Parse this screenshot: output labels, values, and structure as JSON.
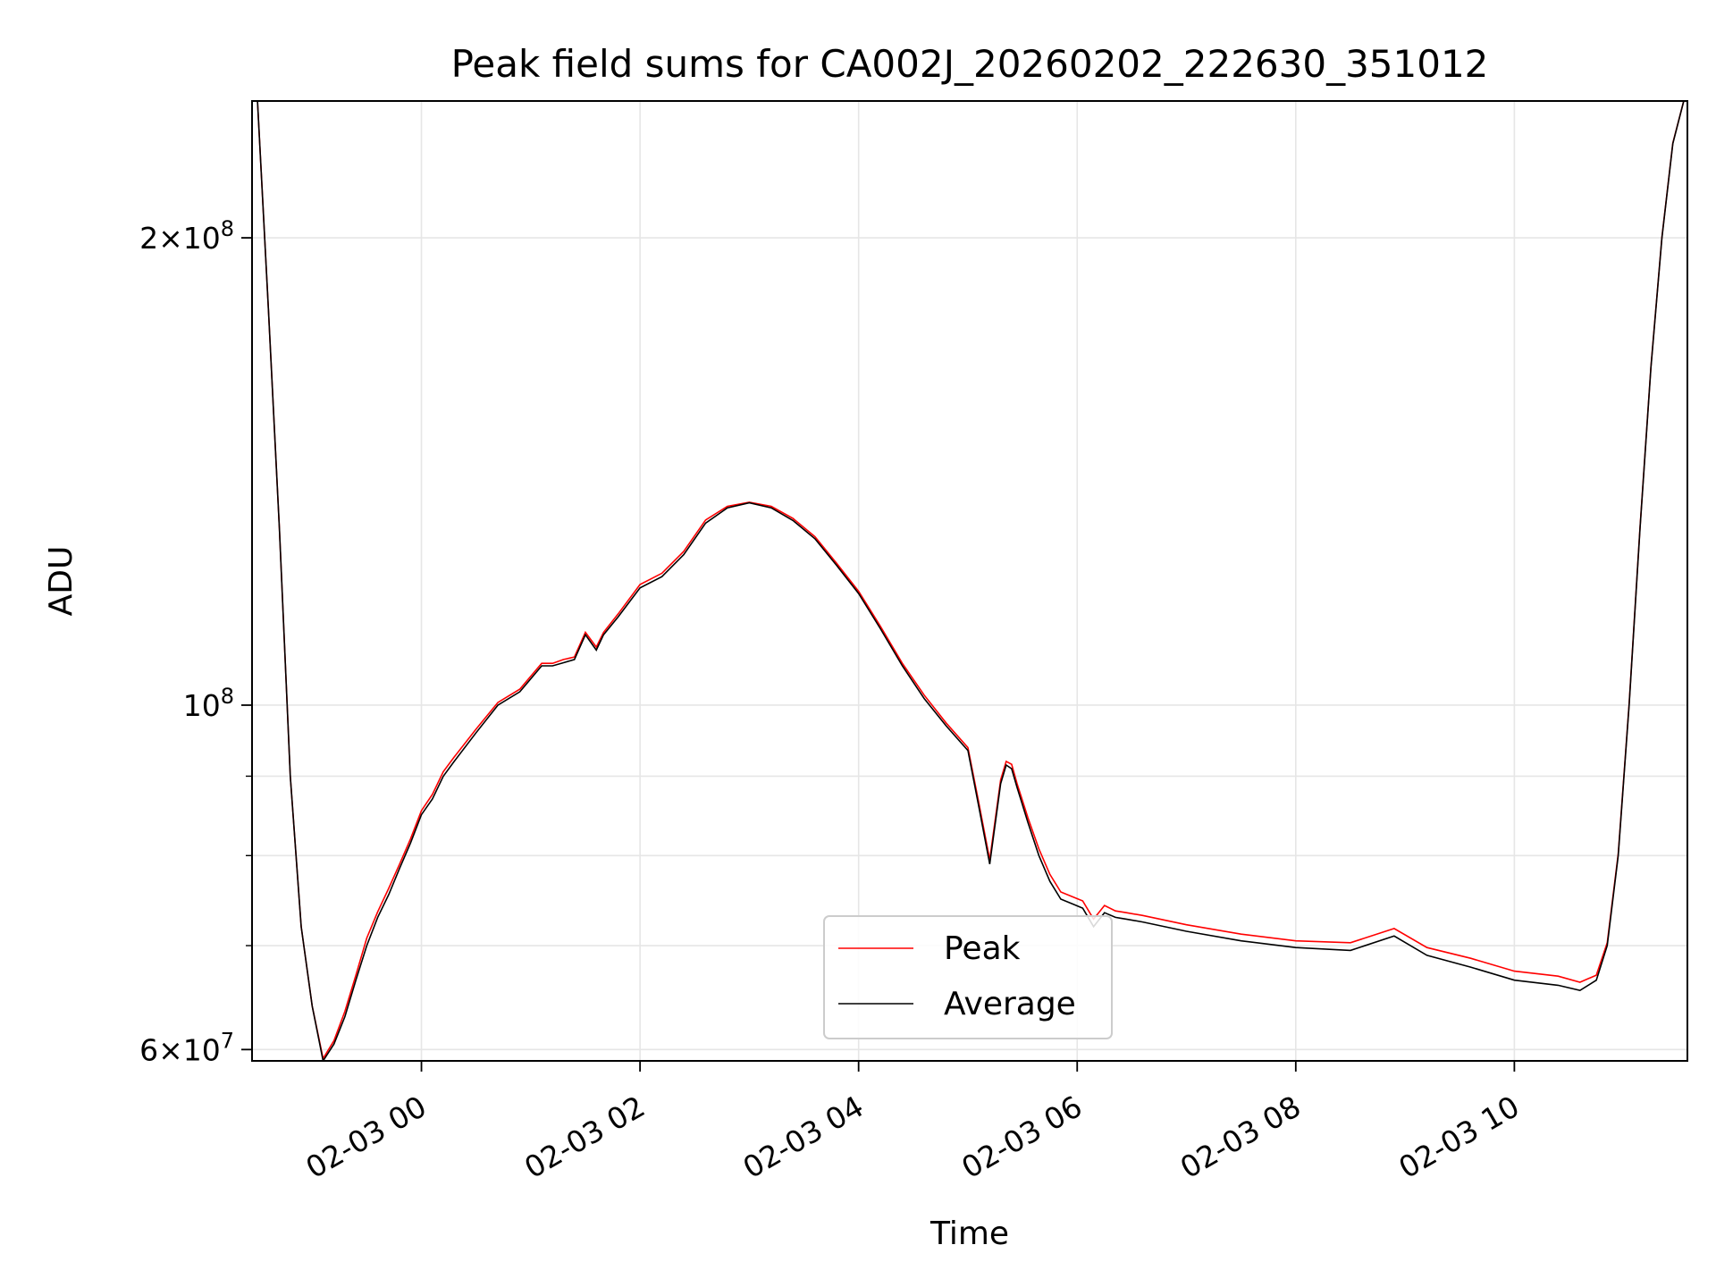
{
  "chart_data": {
    "type": "line",
    "title": "Peak field sums for CA002J_20260202_222630_351012",
    "xlabel": "Time",
    "ylabel": "ADU",
    "xlim": [
      "2026-02-02 22:27",
      "2026-02-03 11:35"
    ],
    "ylim": [
      59000000,
      245000000
    ],
    "yscale": "log",
    "grid": true,
    "legend": "lower center",
    "x_ticks": [
      "02-03 00",
      "02-03 02",
      "02-03 04",
      "02-03 06",
      "02-03 08",
      "02-03 10"
    ],
    "y_ticks": [
      {
        "value": 60000000,
        "mantissa": "6",
        "exponent": "7"
      },
      {
        "value": 100000000,
        "mantissa": "",
        "exponent": "8"
      },
      {
        "value": 200000000,
        "mantissa": "2",
        "exponent": "8"
      }
    ],
    "series": [
      {
        "name": "Peak",
        "color": "#ff0000"
      },
      {
        "name": "Average",
        "color": "#000000"
      }
    ],
    "x": [
      "2026-02-02 22:30",
      "2026-02-02 22:36",
      "2026-02-02 22:42",
      "2026-02-02 22:48",
      "2026-02-02 22:54",
      "2026-02-02 23:00",
      "2026-02-02 23:06",
      "2026-02-02 23:12",
      "2026-02-02 23:18",
      "2026-02-02 23:24",
      "2026-02-02 23:30",
      "2026-02-02 23:36",
      "2026-02-02 23:42",
      "2026-02-02 23:48",
      "2026-02-02 23:54",
      "2026-02-03 00:00",
      "2026-02-03 00:06",
      "2026-02-03 00:12",
      "2026-02-03 00:18",
      "2026-02-03 00:30",
      "2026-02-03 00:42",
      "2026-02-03 00:54",
      "2026-02-03 01:06",
      "2026-02-03 01:12",
      "2026-02-03 01:18",
      "2026-02-03 01:24",
      "2026-02-03 01:30",
      "2026-02-03 01:36",
      "2026-02-03 01:40",
      "2026-02-03 01:48",
      "2026-02-03 02:00",
      "2026-02-03 02:12",
      "2026-02-03 02:24",
      "2026-02-03 02:36",
      "2026-02-03 02:48",
      "2026-02-03 03:00",
      "2026-02-03 03:12",
      "2026-02-03 03:24",
      "2026-02-03 03:36",
      "2026-02-03 03:48",
      "2026-02-03 04:00",
      "2026-02-03 04:12",
      "2026-02-03 04:24",
      "2026-02-03 04:36",
      "2026-02-03 04:48",
      "2026-02-03 05:00",
      "2026-02-03 05:06",
      "2026-02-03 05:12",
      "2026-02-03 05:18",
      "2026-02-03 05:21",
      "2026-02-03 05:24",
      "2026-02-03 05:27",
      "2026-02-03 05:33",
      "2026-02-03 05:39",
      "2026-02-03 05:45",
      "2026-02-03 05:51",
      "2026-02-03 05:57",
      "2026-02-03 06:03",
      "2026-02-03 06:09",
      "2026-02-03 06:15",
      "2026-02-03 06:21",
      "2026-02-03 06:24",
      "2026-02-03 06:27",
      "2026-02-03 06:36",
      "2026-02-03 07:00",
      "2026-02-03 07:30",
      "2026-02-03 08:00",
      "2026-02-03 08:30",
      "2026-02-03 08:54",
      "2026-02-03 09:12",
      "2026-02-03 09:36",
      "2026-02-03 10:00",
      "2026-02-03 10:24",
      "2026-02-03 10:36",
      "2026-02-03 10:45",
      "2026-02-03 10:51",
      "2026-02-03 10:57",
      "2026-02-03 11:03",
      "2026-02-03 11:09",
      "2026-02-03 11:15",
      "2026-02-03 11:21",
      "2026-02-03 11:27",
      "2026-02-03 11:33"
    ],
    "average": [
      245000000,
      180000000,
      130000000,
      90000000,
      72000000,
      64000000,
      59000000,
      60500000,
      63000000,
      66500000,
      70000000,
      73000000,
      75500000,
      78500000,
      81500000,
      85000000,
      87000000,
      90000000,
      92000000,
      96000000,
      100000000,
      102000000,
      106000000,
      106000000,
      106500000,
      107000000,
      111000000,
      108500000,
      111000000,
      114000000,
      119000000,
      121000000,
      125000000,
      131000000,
      134000000,
      135000000,
      134000000,
      131500000,
      128000000,
      123000000,
      118000000,
      112000000,
      106000000,
      101000000,
      97000000,
      93500000,
      86000000,
      79000000,
      89000000,
      91500000,
      91000000,
      88500000,
      84000000,
      80000000,
      77000000,
      75000000,
      74500000,
      74000000,
      72000000,
      73500000,
      73000000,
      72900000,
      72800000,
      72500000,
      71500000,
      70500000,
      69800000,
      69500000,
      71000000,
      69000000,
      67800000,
      66500000,
      66000000,
      65500000,
      66500000,
      70000000,
      80000000,
      100000000,
      130000000,
      165000000,
      200000000,
      230000000,
      245000000
    ],
    "peak": [
      245000000,
      180000000,
      130000000,
      90000000,
      72000000,
      64000000,
      59200000,
      60800000,
      63500000,
      67000000,
      70800000,
      73600000,
      76200000,
      79000000,
      82000000,
      85500000,
      87600000,
      90600000,
      92600000,
      96500000,
      100400000,
      102400000,
      106400000,
      106400000,
      107000000,
      107400000,
      111400000,
      109000000,
      111400000,
      114500000,
      119600000,
      121600000,
      125600000,
      131600000,
      134300000,
      135100000,
      134300000,
      131900000,
      128400000,
      123400000,
      118400000,
      112400000,
      106400000,
      101500000,
      97400000,
      93900000,
      86500000,
      79500000,
      89500000,
      92000000,
      91600000,
      89000000,
      84600000,
      80800000,
      77800000,
      75800000,
      75300000,
      74800000,
      72800000,
      74300000,
      73700000,
      73600000,
      73500000,
      73200000,
      72200000,
      71200000,
      70500000,
      70300000,
      71800000,
      69800000,
      68700000,
      67400000,
      66900000,
      66300000,
      67000000,
      70300000,
      80200000,
      100200000,
      130200000,
      165200000,
      200200000,
      230200000,
      245000000
    ]
  }
}
